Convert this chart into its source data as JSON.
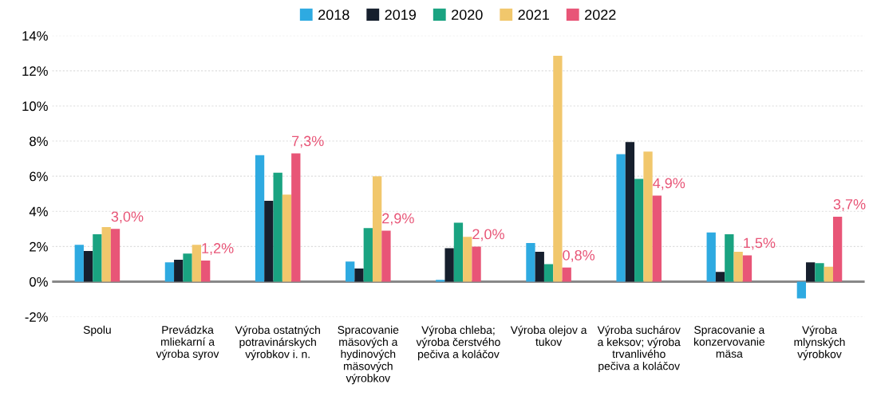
{
  "chart_data": {
    "type": "bar",
    "categories": [
      "Spolu",
      "Prevádzka\nmliekarní a\nvýroba syrov",
      "Výroba ostatných\npotravinárskych\nvýrobkov i. n.",
      "Spracovanie\nmäsových a\nhydinových\nmäsových\nvýrobkov",
      "Výroba chleba;\nvýroba čerstvého\npečiva a koláčov",
      "Výroba olejov a\ntukov",
      "Výroba suchárov\na keksov; výroba\ntrvanlivého\npečiva a koláčov",
      "Spracovanie a\nkonzervovanie\nmäsa",
      "Výroba\nmlynských\nvýrobkov"
    ],
    "series": [
      {
        "name": "2018",
        "color": "#2eaae1",
        "values": [
          2.1,
          1.1,
          7.2,
          1.15,
          0.1,
          2.2,
          7.25,
          2.8,
          -0.95
        ]
      },
      {
        "name": "2019",
        "color": "#161f2d",
        "values": [
          1.75,
          1.25,
          4.6,
          0.75,
          1.9,
          1.7,
          7.95,
          0.55,
          1.1
        ]
      },
      {
        "name": "2020",
        "color": "#1aa381",
        "values": [
          2.7,
          1.6,
          6.2,
          3.05,
          3.35,
          1.0,
          5.85,
          2.7,
          1.05
        ]
      },
      {
        "name": "2021",
        "color": "#f1c76c",
        "values": [
          3.1,
          2.1,
          4.95,
          6.0,
          2.55,
          12.85,
          7.4,
          1.7,
          0.85
        ]
      },
      {
        "name": "2022",
        "color": "#e85577",
        "values": [
          3.0,
          1.2,
          7.3,
          2.9,
          2.0,
          0.8,
          4.9,
          1.5,
          3.7
        ],
        "value_labels": [
          "3,0%",
          "1,2%",
          "7,3%",
          "2,9%",
          "2,0%",
          "0,8%",
          "4,9%",
          "1,5%",
          "3,7%"
        ]
      }
    ],
    "ylim": [
      -2,
      14
    ],
    "yticks": [
      {
        "value": -2,
        "label": "-2%"
      },
      {
        "value": 0,
        "label": "0%"
      },
      {
        "value": 2,
        "label": "2%"
      },
      {
        "value": 4,
        "label": "4%"
      },
      {
        "value": 6,
        "label": "6%"
      },
      {
        "value": 8,
        "label": "8%"
      },
      {
        "value": 10,
        "label": "10%"
      },
      {
        "value": 12,
        "label": "12%"
      },
      {
        "value": 14,
        "label": "14%"
      }
    ],
    "grid": "y",
    "legend": "top"
  }
}
